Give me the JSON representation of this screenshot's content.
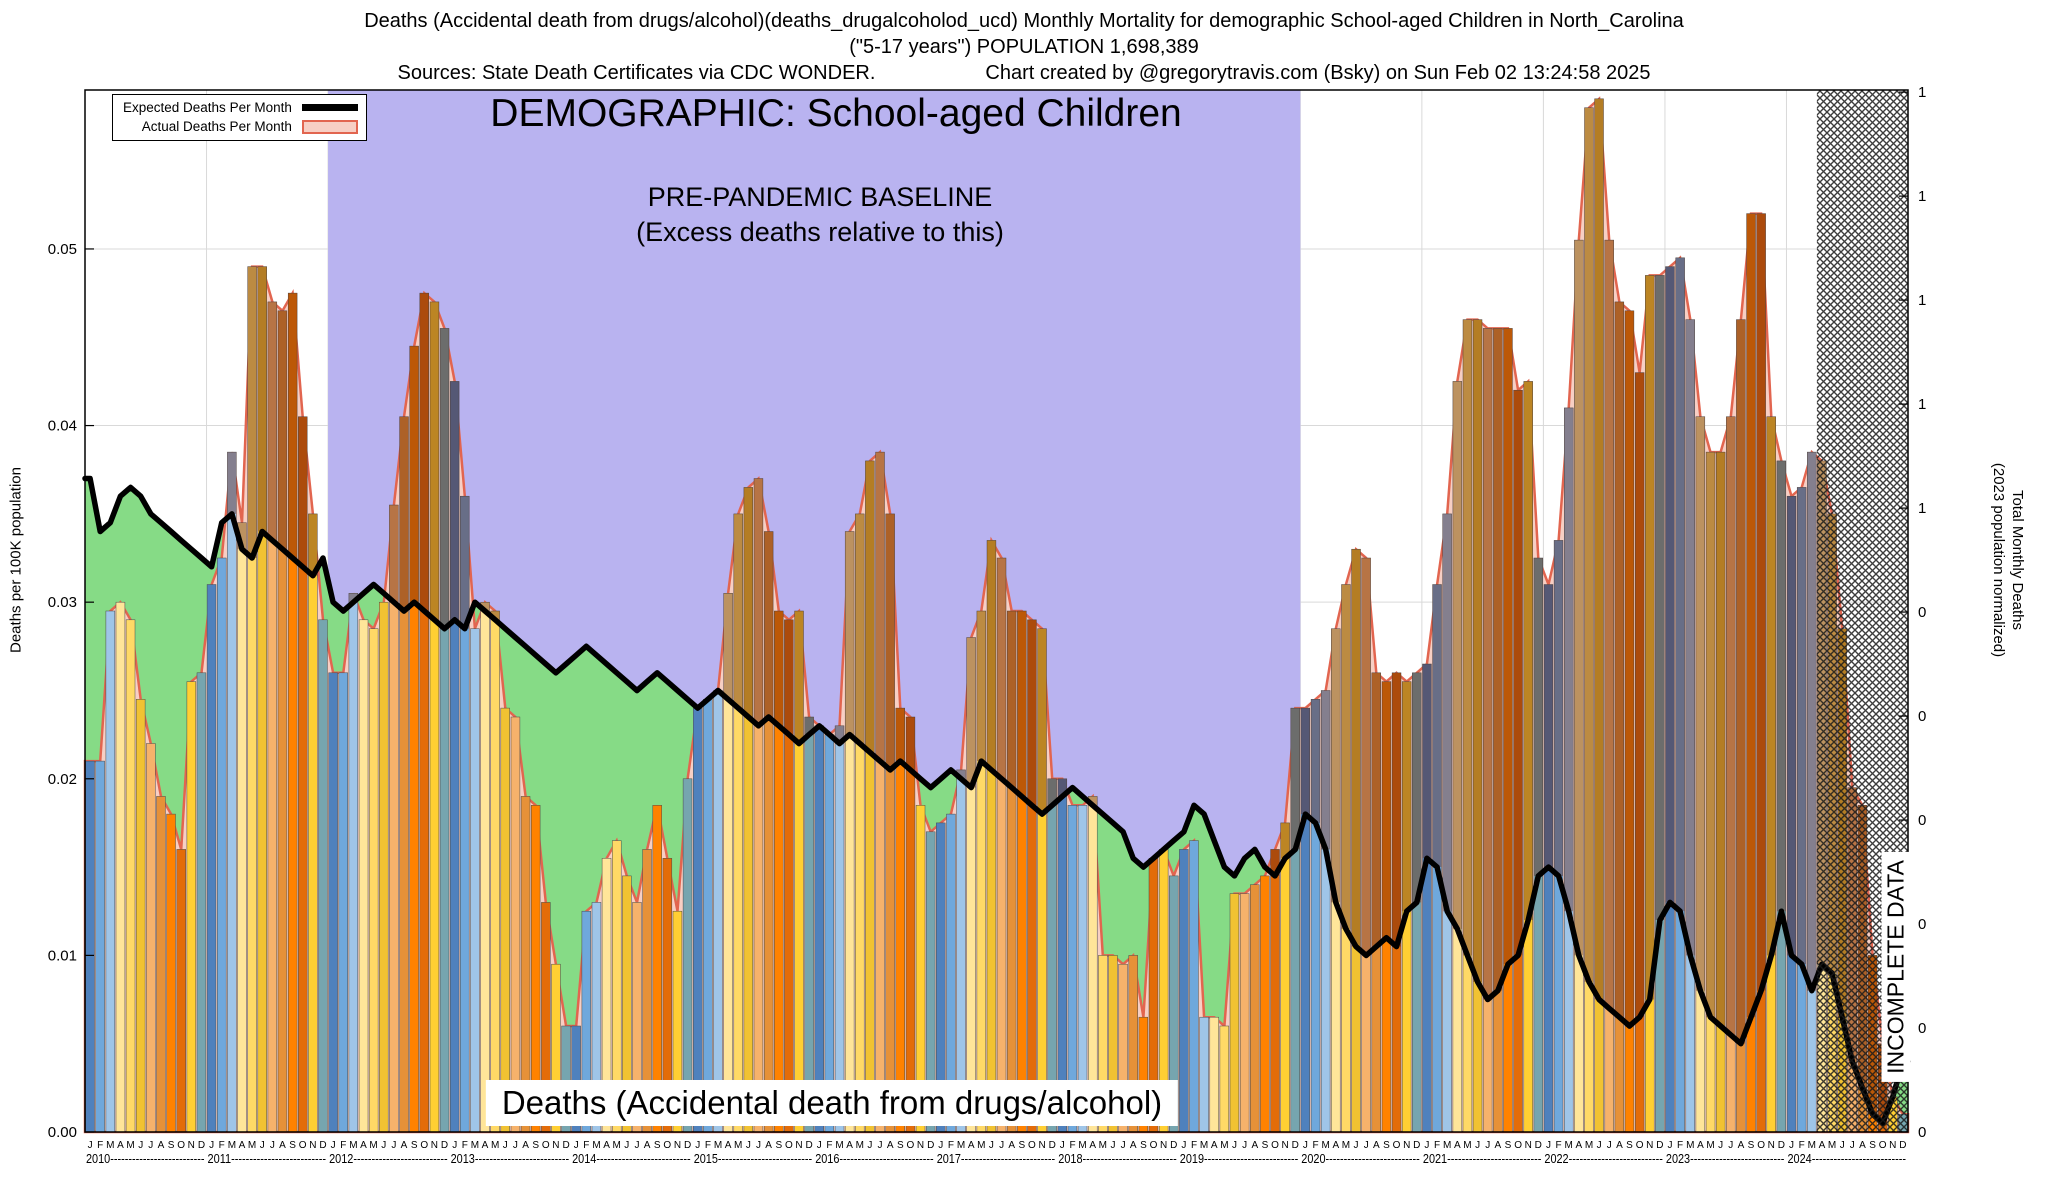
{
  "header": {
    "line1": "Deaths (Accidental death from drugs/alcohol)(deaths_drugalcoholod_ucd) Monthly Mortality for demographic School-aged Children in North_Carolina",
    "line2": "(\"5-17 years\") POPULATION 1,698,389",
    "sources": "Sources: State Death Certificates via CDC WONDER.",
    "credit": "Chart created by @gregorytravis.com (Bsky) on Sun Feb 02 13:24:58 2025"
  },
  "legend": {
    "expected": "Expected Deaths Per Month",
    "actual": "Actual Deaths Per Month"
  },
  "overlays": {
    "demographic": "DEMOGRAPHIC: School-aged Children",
    "baseline_line1": "PRE-PANDEMIC BASELINE",
    "baseline_line2": "(Excess deaths relative to this)",
    "cause": "Deaths (Accidental death from drugs/alcohol)",
    "incomplete": "INCOMPLETE DATA"
  },
  "axes": {
    "left": {
      "title": "Deaths per 100K population"
    },
    "right": {
      "title_line1": "Total Monthly Deaths",
      "title_line2": "(2023 population normalized)"
    }
  },
  "chart_data": {
    "type": "bar",
    "title": "Deaths (Accidental death from drugs/alcohol)",
    "xlabel": "",
    "ylabel": "Deaths per 100K population",
    "ylabel_right": "Total Monthly Deaths (2023 population normalized)",
    "ylim": [
      0,
      0.059
    ],
    "grid": true,
    "legend_position": "top-left",
    "years": [
      2010,
      2011,
      2012,
      2013,
      2014,
      2015,
      2016,
      2017,
      2018,
      2019,
      2020,
      2021,
      2022,
      2023,
      2024
    ],
    "month_letters": [
      "J",
      "F",
      "M",
      "A",
      "M",
      "J",
      "J",
      "A",
      "S",
      "O",
      "N",
      "D"
    ],
    "left_ticks": [
      0.0,
      0.01,
      0.02,
      0.03,
      0.04,
      0.05
    ],
    "right_ticks": [
      {
        "value": 1.0,
        "label": "1"
      },
      {
        "value": 0.9,
        "label": "1"
      },
      {
        "value": 0.8,
        "label": "1"
      },
      {
        "value": 0.7,
        "label": "1"
      },
      {
        "value": 0.6,
        "label": "1"
      },
      {
        "value": 0.5,
        "label": "0"
      },
      {
        "value": 0.4,
        "label": "0"
      },
      {
        "value": 0.3,
        "label": "0"
      },
      {
        "value": 0.2,
        "label": "0"
      },
      {
        "value": 0.1,
        "label": "0"
      },
      {
        "value": 0.0,
        "label": "0"
      }
    ],
    "population_label": "1,698,389",
    "population_factor_100k": 16.98389,
    "baseline_band_months": [
      24,
      120
    ],
    "incomplete_from_month": 171,
    "colors": {
      "baseline_band": "#b9b3f0",
      "expected_line": "#000000",
      "actual_fill": "#f7cfc4",
      "actual_stroke": "#e2654f",
      "deficit_fill": "#86db86",
      "excess_shade": "rgba(96,32,16,0.42)"
    },
    "bar_month_colors": [
      "#4f81bd",
      "#6fa8dc",
      "#9fc5e8",
      "#ffe599",
      "#ffd966",
      "#f1c232",
      "#f6b26b",
      "#e69138",
      "#ff8200",
      "#e36c09",
      "#ffcf33",
      "#76a5af"
    ],
    "series": [
      {
        "name": "Actual Deaths Per Month",
        "values": [
          0.021,
          0.021,
          0.0295,
          0.03,
          0.029,
          0.0245,
          0.022,
          0.019,
          0.018,
          0.016,
          0.0255,
          0.026,
          0.031,
          0.0325,
          0.0385,
          0.0345,
          0.049,
          0.049,
          0.047,
          0.0465,
          0.0475,
          0.0405,
          0.035,
          0.029,
          0.026,
          0.026,
          0.0305,
          0.029,
          0.0285,
          0.03,
          0.0355,
          0.0405,
          0.0445,
          0.0475,
          0.047,
          0.0455,
          0.0425,
          0.036,
          0.0285,
          0.03,
          0.0295,
          0.024,
          0.0235,
          0.019,
          0.0185,
          0.013,
          0.0095,
          0.006,
          0.006,
          0.0125,
          0.013,
          0.0155,
          0.0165,
          0.0145,
          0.013,
          0.016,
          0.0185,
          0.0155,
          0.0125,
          0.02,
          0.024,
          0.0245,
          0.025,
          0.0305,
          0.035,
          0.0365,
          0.037,
          0.034,
          0.0295,
          0.029,
          0.0295,
          0.0235,
          0.023,
          0.0225,
          0.023,
          0.034,
          0.035,
          0.038,
          0.0385,
          0.035,
          0.024,
          0.0235,
          0.0185,
          0.017,
          0.0175,
          0.018,
          0.0205,
          0.028,
          0.0295,
          0.0335,
          0.0325,
          0.0295,
          0.0295,
          0.029,
          0.0285,
          0.02,
          0.02,
          0.0185,
          0.0185,
          0.019,
          0.01,
          0.01,
          0.0095,
          0.01,
          0.0065,
          0.0155,
          0.016,
          0.0145,
          0.016,
          0.0165,
          0.0065,
          0.0065,
          0.006,
          0.0135,
          0.0135,
          0.014,
          0.0145,
          0.016,
          0.0175,
          0.024,
          0.024,
          0.0245,
          0.025,
          0.0285,
          0.031,
          0.033,
          0.0325,
          0.026,
          0.0255,
          0.026,
          0.0255,
          0.026,
          0.0265,
          0.031,
          0.035,
          0.0425,
          0.046,
          0.046,
          0.0455,
          0.0455,
          0.0455,
          0.042,
          0.0425,
          0.0325,
          0.031,
          0.0335,
          0.041,
          0.0505,
          0.058,
          0.0585,
          0.0505,
          0.047,
          0.0465,
          0.043,
          0.0485,
          0.0485,
          0.049,
          0.0495,
          0.046,
          0.0405,
          0.0385,
          0.0385,
          0.0405,
          0.046,
          0.052,
          0.052,
          0.0405,
          0.038,
          0.036,
          0.0365,
          0.0385,
          0.038,
          0.035,
          0.0285,
          0.0195,
          0.0185,
          0.01,
          0.005,
          0.002,
          0.001
        ]
      },
      {
        "name": "Expected Deaths Per Month",
        "values": [
          0.037,
          0.034,
          0.0345,
          0.036,
          0.0365,
          0.036,
          0.035,
          0.0345,
          0.034,
          0.0335,
          0.033,
          0.0325,
          0.032,
          0.0345,
          0.035,
          0.033,
          0.0325,
          0.034,
          0.0335,
          0.033,
          0.0325,
          0.032,
          0.0315,
          0.0325,
          0.03,
          0.0295,
          0.03,
          0.0305,
          0.031,
          0.0305,
          0.03,
          0.0295,
          0.03,
          0.0295,
          0.029,
          0.0285,
          0.029,
          0.0285,
          0.03,
          0.0295,
          0.029,
          0.0285,
          0.028,
          0.0275,
          0.027,
          0.0265,
          0.026,
          0.0265,
          0.027,
          0.0275,
          0.027,
          0.0265,
          0.026,
          0.0255,
          0.025,
          0.0255,
          0.026,
          0.0255,
          0.025,
          0.0245,
          0.024,
          0.0245,
          0.025,
          0.0245,
          0.024,
          0.0235,
          0.023,
          0.0235,
          0.023,
          0.0225,
          0.022,
          0.0225,
          0.023,
          0.0225,
          0.022,
          0.0225,
          0.022,
          0.0215,
          0.021,
          0.0205,
          0.021,
          0.0205,
          0.02,
          0.0195,
          0.02,
          0.0205,
          0.02,
          0.0195,
          0.021,
          0.0205,
          0.02,
          0.0195,
          0.019,
          0.0185,
          0.018,
          0.0185,
          0.019,
          0.0195,
          0.019,
          0.0185,
          0.018,
          0.0175,
          0.017,
          0.0155,
          0.015,
          0.0155,
          0.016,
          0.0165,
          0.017,
          0.0185,
          0.018,
          0.0165,
          0.015,
          0.0145,
          0.0155,
          0.016,
          0.015,
          0.0145,
          0.0155,
          0.016,
          0.018,
          0.0175,
          0.016,
          0.013,
          0.0115,
          0.0105,
          0.01,
          0.0105,
          0.011,
          0.0105,
          0.0125,
          0.013,
          0.0155,
          0.015,
          0.0125,
          0.0115,
          0.01,
          0.0085,
          0.0075,
          0.008,
          0.0095,
          0.01,
          0.012,
          0.0145,
          0.015,
          0.0145,
          0.0125,
          0.01,
          0.0085,
          0.0075,
          0.007,
          0.0065,
          0.006,
          0.0065,
          0.0075,
          0.012,
          0.013,
          0.0125,
          0.01,
          0.008,
          0.0065,
          0.006,
          0.0055,
          0.005,
          0.0065,
          0.008,
          0.01,
          0.0125,
          0.01,
          0.0095,
          0.008,
          0.0095,
          0.009,
          0.0065,
          0.004,
          0.0025,
          0.001,
          0.0005,
          0.002,
          0.004
        ]
      }
    ]
  }
}
